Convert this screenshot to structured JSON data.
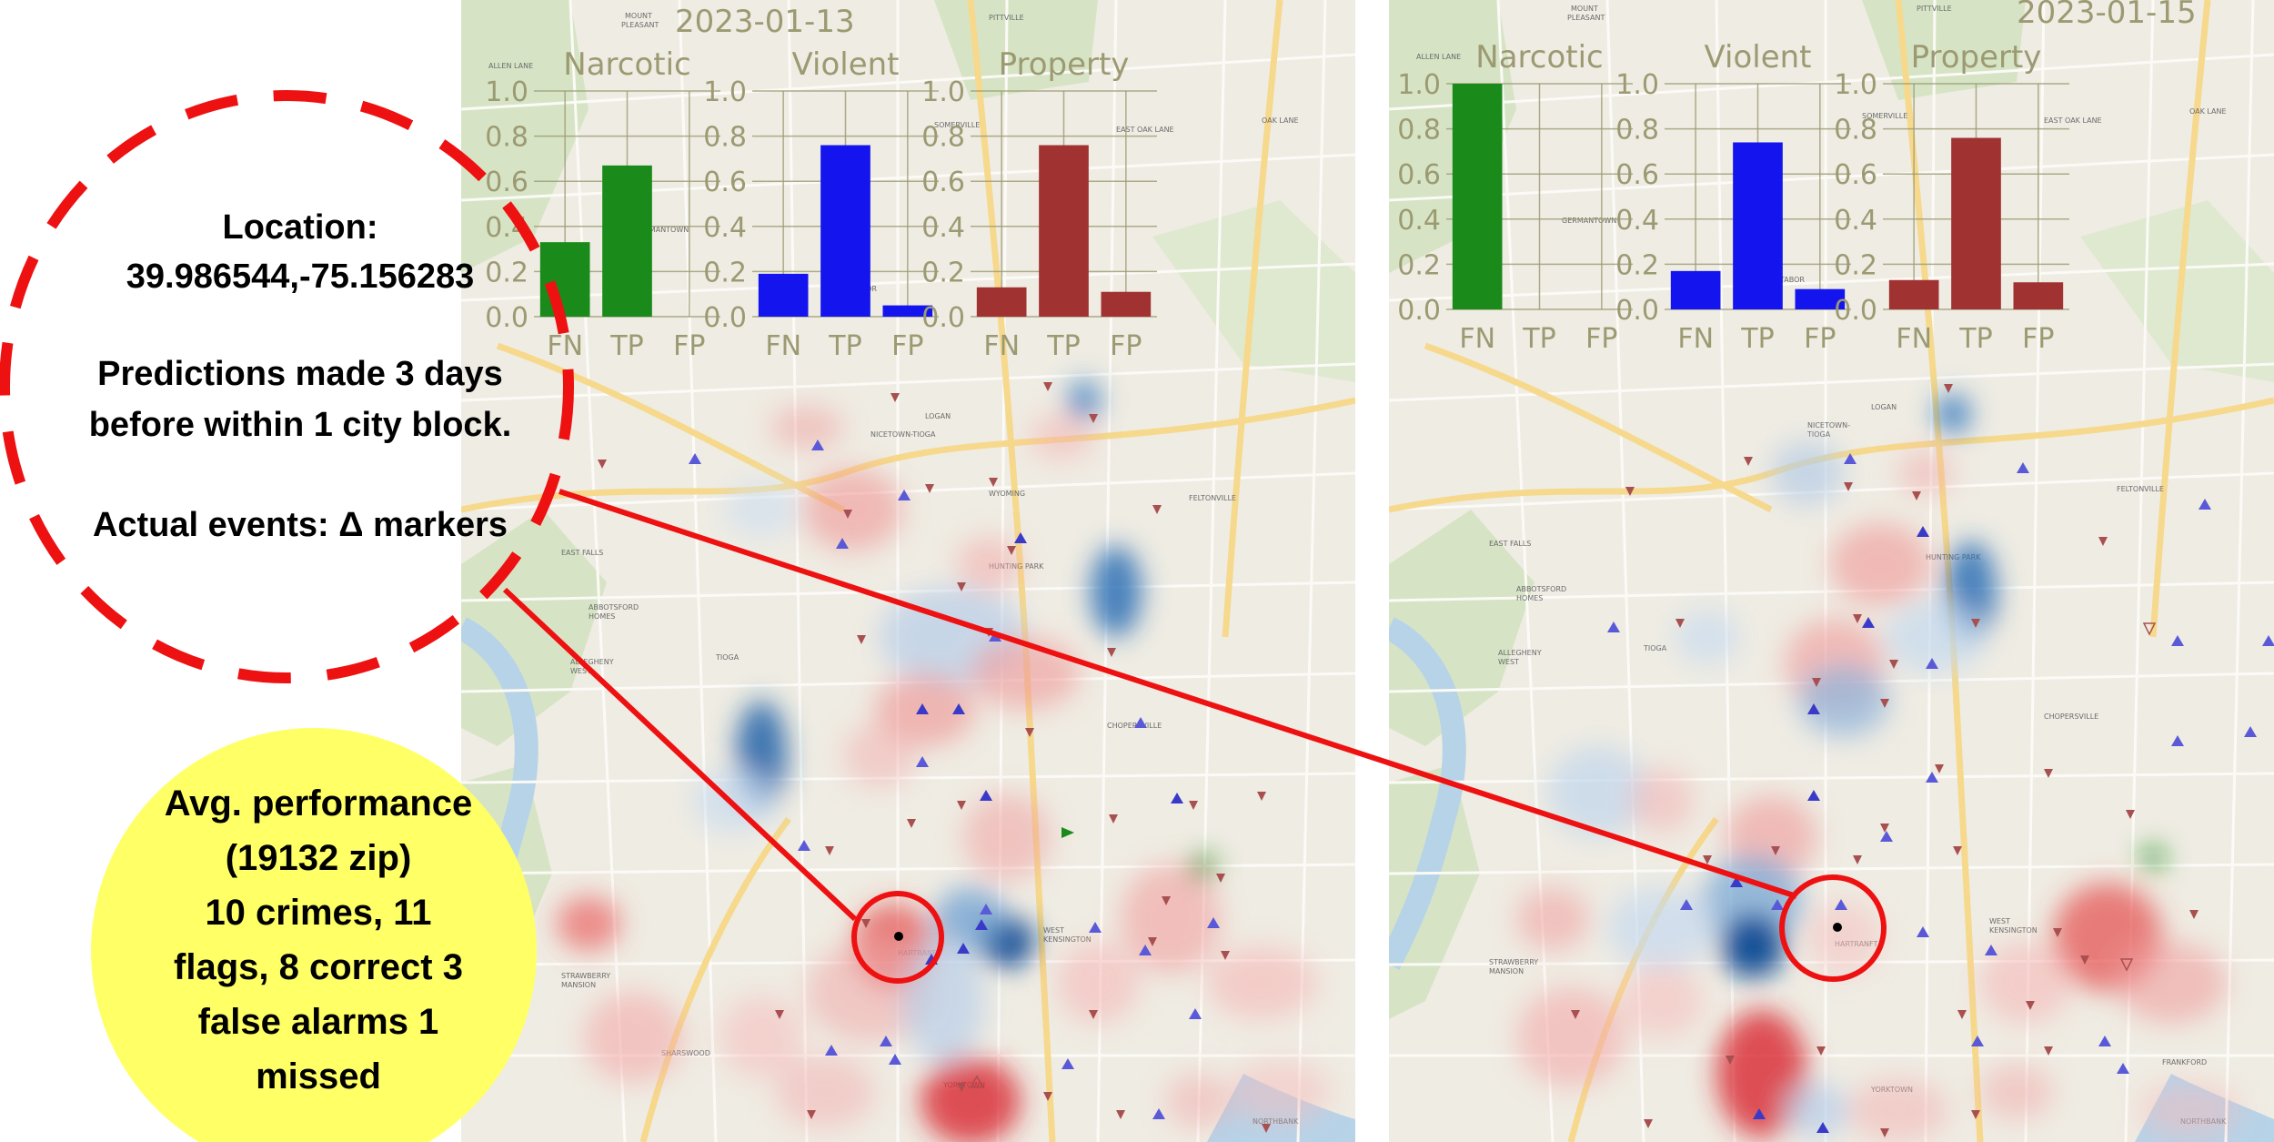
{
  "panels": [
    {
      "date": "2023-01-13",
      "charts": [
        {
          "title": "Narcotic",
          "color": "#1a8a1a",
          "categories": [
            "FN",
            "TP",
            "FP"
          ],
          "values": [
            0.33,
            0.67,
            0.0
          ]
        },
        {
          "title": "Violent",
          "color": "#1414ee",
          "categories": [
            "FN",
            "TP",
            "FP"
          ],
          "values": [
            0.19,
            0.76,
            0.05
          ]
        },
        {
          "title": "Property",
          "color": "#a03232",
          "categories": [
            "FN",
            "TP",
            "FP"
          ],
          "values": [
            0.13,
            0.76,
            0.11
          ]
        }
      ]
    },
    {
      "date": "2023-01-15",
      "charts": [
        {
          "title": "Narcotic",
          "color": "#1a8a1a",
          "categories": [
            "FN",
            "TP",
            "FP"
          ],
          "values": [
            1.0,
            0.0,
            0.0
          ]
        },
        {
          "title": "Violent",
          "color": "#1414ee",
          "categories": [
            "FN",
            "TP",
            "FP"
          ],
          "values": [
            0.17,
            0.74,
            0.09
          ]
        },
        {
          "title": "Property",
          "color": "#a03232",
          "categories": [
            "FN",
            "TP",
            "FP"
          ],
          "values": [
            0.13,
            0.76,
            0.12
          ]
        }
      ]
    }
  ],
  "chart_data": [
    {
      "type": "bar",
      "title": "Narcotic",
      "date": "2023-01-13",
      "categories": [
        "FN",
        "TP",
        "FP"
      ],
      "values": [
        0.33,
        0.67,
        0.0
      ],
      "ylim": [
        0,
        1.0
      ],
      "yticks": [
        "0.0",
        "0.2",
        "0.4",
        "0.6",
        "0.8",
        "1.0"
      ],
      "grid": true
    },
    {
      "type": "bar",
      "title": "Violent",
      "date": "2023-01-13",
      "categories": [
        "FN",
        "TP",
        "FP"
      ],
      "values": [
        0.19,
        0.76,
        0.05
      ],
      "ylim": [
        0,
        1.0
      ],
      "yticks": [
        "0.0",
        "0.2",
        "0.4",
        "0.6",
        "0.8",
        "1.0"
      ],
      "grid": true
    },
    {
      "type": "bar",
      "title": "Property",
      "date": "2023-01-13",
      "categories": [
        "FN",
        "TP",
        "FP"
      ],
      "values": [
        0.13,
        0.76,
        0.11
      ],
      "ylim": [
        0,
        1.0
      ],
      "yticks": [
        "0.0",
        "0.2",
        "0.4",
        "0.6",
        "0.8",
        "1.0"
      ],
      "grid": true
    },
    {
      "type": "bar",
      "title": "Narcotic",
      "date": "2023-01-15",
      "categories": [
        "FN",
        "TP",
        "FP"
      ],
      "values": [
        1.0,
        0.0,
        0.0
      ],
      "ylim": [
        0,
        1.0
      ],
      "yticks": [
        "0.0",
        "0.2",
        "0.4",
        "0.6",
        "0.8",
        "1.0"
      ],
      "grid": true
    },
    {
      "type": "bar",
      "title": "Violent",
      "date": "2023-01-15",
      "categories": [
        "FN",
        "TP",
        "FP"
      ],
      "values": [
        0.17,
        0.74,
        0.09
      ],
      "ylim": [
        0,
        1.0
      ],
      "yticks": [
        "0.0",
        "0.2",
        "0.4",
        "0.6",
        "0.8",
        "1.0"
      ],
      "grid": true
    },
    {
      "type": "bar",
      "title": "Property",
      "date": "2023-01-15",
      "categories": [
        "FN",
        "TP",
        "FP"
      ],
      "values": [
        0.13,
        0.76,
        0.12
      ],
      "ylim": [
        0,
        1.0
      ],
      "yticks": [
        "0.0",
        "0.2",
        "0.4",
        "0.6",
        "0.8",
        "1.0"
      ],
      "grid": true
    }
  ],
  "info": {
    "location_label": "Location:",
    "location_value": "39.986544,-75.156283",
    "predictions_line1": "Predictions made 3 days",
    "predictions_line2": "before within 1 city block.",
    "actual_events": "Actual events: Δ markers"
  },
  "performance": {
    "line1": "Avg. performance",
    "line2": "(19132 zip)",
    "line3": "10 crimes, 11",
    "line4": "flags, 8 correct 3",
    "line5": "false alarms 1",
    "line6": "missed"
  },
  "map_labels": [
    "MOUNT PLEASANT",
    "ALLEN LANE",
    "PITTVILLE",
    "OAK LANE",
    "EAST OAK LANE",
    "SOMERVILLE",
    "GERMANTOWN",
    "LOGAN",
    "TABOR",
    "NICETOWN-TIOGA",
    "WYOMING",
    "FELTONVILLE",
    "HUNTING PARK",
    "EAST FALLS",
    "ABBOTSFORD HOMES",
    "ALLEGHENY WEST",
    "TIOGA",
    "CHOPERSVILLE",
    "WEST KENSINGTON",
    "STRAWBERRY MANSION",
    "HARTRANFT",
    "YORKTOWN",
    "NORTHBANK",
    "FRANKFORD"
  ],
  "colors": {
    "highlight": "#ff0000",
    "bubble": "#ffff66",
    "narcotic": "#1a8a1a",
    "violent": "#1414ee",
    "property": "#a03232"
  }
}
